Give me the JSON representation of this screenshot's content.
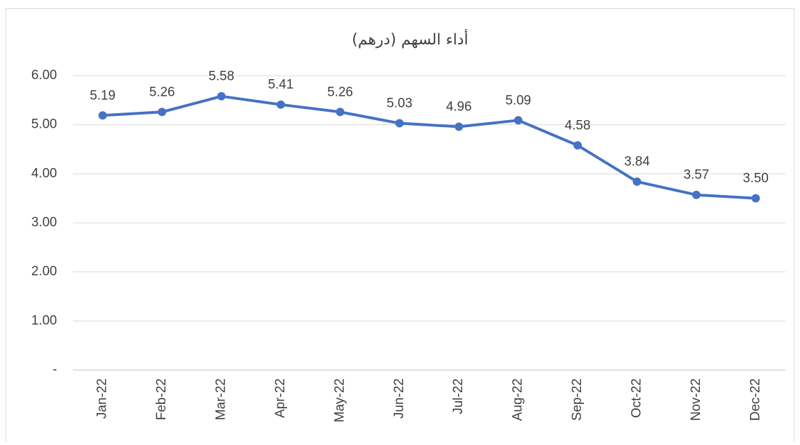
{
  "chart_data": {
    "type": "line",
    "title": "أداء السهم (درهم)",
    "categories": [
      "Jan-22",
      "Feb-22",
      "Mar-22",
      "Apr-22",
      "May-22",
      "Jun-22",
      "Jul-22",
      "Aug-22",
      "Sep-22",
      "Oct-22",
      "Nov-22",
      "Dec-22"
    ],
    "series": [
      {
        "name": "أداء السهم",
        "color": "#4472c4",
        "values": [
          5.19,
          5.26,
          5.58,
          5.41,
          5.26,
          5.03,
          4.96,
          5.09,
          4.58,
          3.84,
          3.57,
          3.5
        ],
        "value_labels": [
          "5.19",
          "5.26",
          "5.58",
          "5.41",
          "5.26",
          "5.03",
          "4.96",
          "5.09",
          "4.58",
          "3.84",
          "3.57",
          "3.50"
        ]
      }
    ],
    "ylim": [
      0,
      6
    ],
    "yticks": [
      {
        "value": 0,
        "label": "-"
      },
      {
        "value": 1,
        "label": "1.00"
      },
      {
        "value": 2,
        "label": "2.00"
      },
      {
        "value": 3,
        "label": "3.00"
      },
      {
        "value": 4,
        "label": "4.00"
      },
      {
        "value": 5,
        "label": "5.00"
      },
      {
        "value": 6,
        "label": "6.00"
      }
    ],
    "grid": true
  }
}
